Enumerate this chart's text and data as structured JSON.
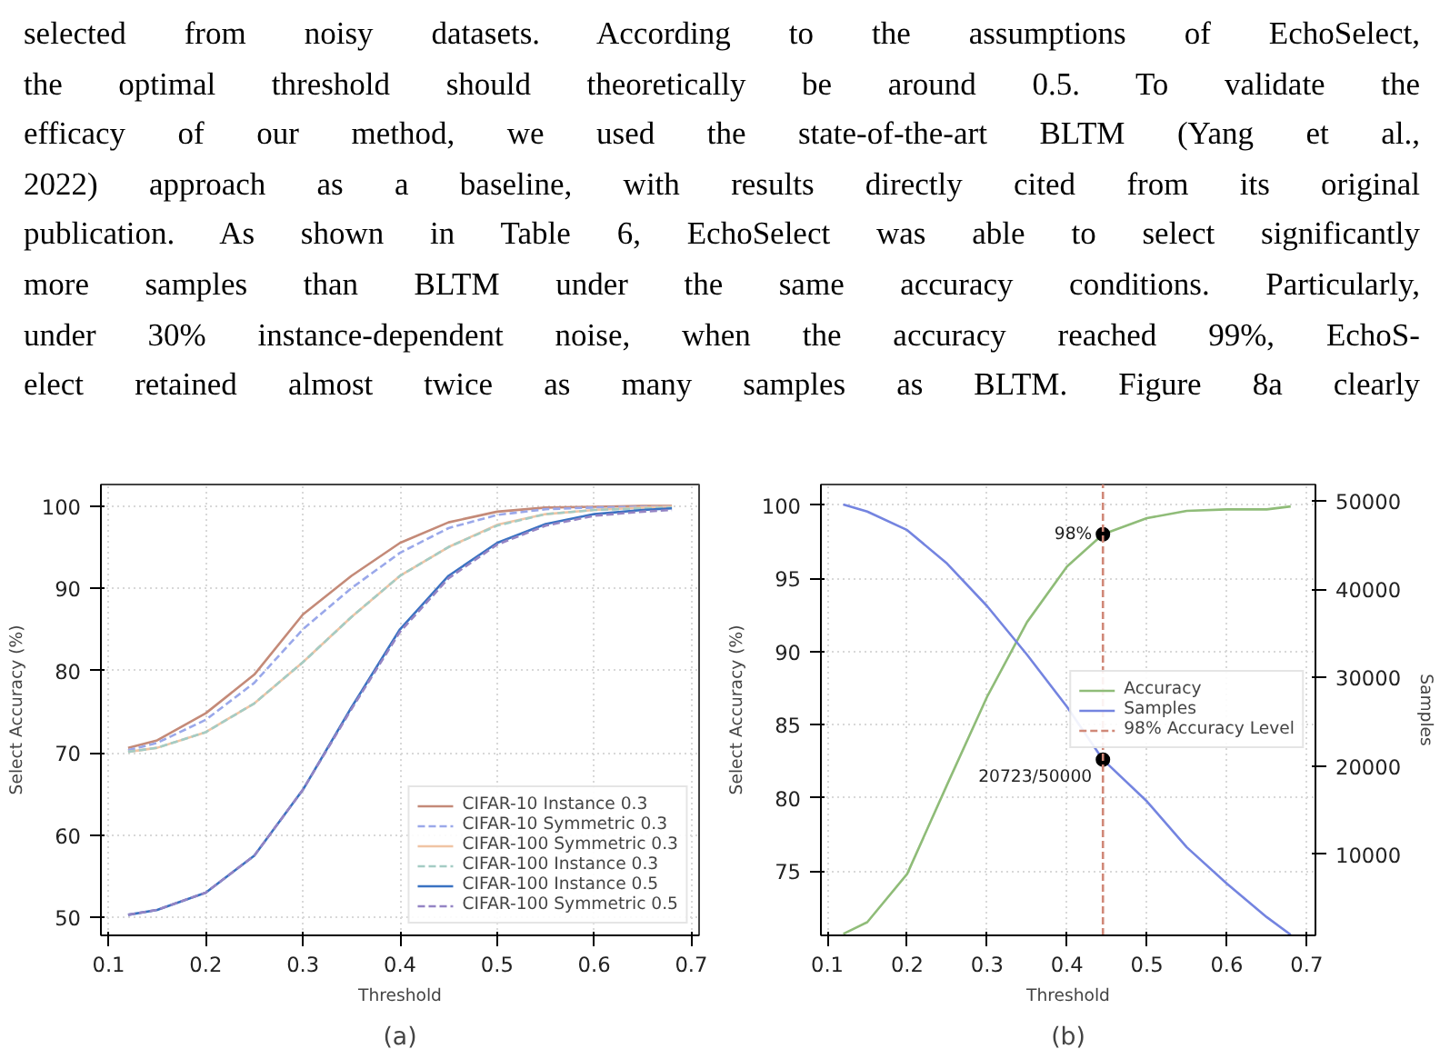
{
  "chart_data": [
    {
      "type": "other",
      "annotations": [
        "selected from noisy datasets. According to the assumptions of EchoSelect,",
        "the optimal threshold should theoretically be around 0.5. To validate the",
        "efficacy of our method, we used the state-of-the-art BLTM (Yang et al.,",
        "2022) approach as a baseline, with results directly cited from its original",
        "publication. As shown in Table 6, EchoSelect was able to select significantly",
        "more samples than BLTM under the same accuracy conditions. Particularly,",
        "under 30% instance-dependent noise, when the accuracy reached 99%, EchoS-",
        "elect retained almost twice as many samples as BLTM. Figure 8a clearly"
      ]
    },
    {
      "type": "line",
      "title": "(a)",
      "xlabel": "Threshold",
      "ylabel": "Select Accuracy (%)",
      "xlim": [
        0.092,
        0.708
      ],
      "ylim": [
        47.8,
        102.6
      ],
      "xticks": [
        0.1,
        0.2,
        0.3,
        0.4,
        0.5,
        0.6,
        0.7
      ],
      "yticks": [
        50,
        60,
        70,
        80,
        90,
        100
      ],
      "grid": true,
      "legend": "bottom right",
      "x": [
        0.12,
        0.15,
        0.2,
        0.25,
        0.3,
        0.35,
        0.4,
        0.45,
        0.5,
        0.55,
        0.6,
        0.65,
        0.68
      ],
      "series": [
        {
          "name": "CIFAR-10 Instance 0.3",
          "color": "#c48a78",
          "line_style": "solid",
          "values": [
            70.6,
            71.5,
            74.8,
            79.5,
            86.8,
            91.5,
            95.5,
            98,
            99.3,
            99.8,
            99.9,
            100,
            100
          ]
        },
        {
          "name": "CIFAR-10 Symmetric 0.3",
          "color": "#9aa8ea",
          "line_style": "dashed",
          "values": [
            70.3,
            71.2,
            74,
            78.5,
            85,
            90,
            94.3,
            97.3,
            98.9,
            99.6,
            99.8,
            99.9,
            99.9
          ]
        },
        {
          "name": "CIFAR-100 Symmetric 0.3",
          "color": "#f0c4a4",
          "line_style": "solid",
          "values": [
            70.1,
            70.6,
            72.5,
            76,
            81,
            86.5,
            91.5,
            95,
            97.7,
            99,
            99.5,
            99.8,
            99.9
          ]
        },
        {
          "name": "CIFAR-100 Instance 0.3",
          "color": "#a4ccc4",
          "line_style": "dashed",
          "values": [
            70.1,
            70.6,
            72.5,
            76,
            81,
            86.5,
            91.5,
            95,
            97.6,
            99,
            99.5,
            99.7,
            99.8
          ]
        },
        {
          "name": "CIFAR-100 Instance 0.5",
          "color": "#3a72c2",
          "line_style": "solid",
          "values": [
            50.3,
            50.9,
            53,
            57.5,
            65.5,
            75.5,
            85,
            91.5,
            95.5,
            97.8,
            99,
            99.5,
            99.7
          ]
        },
        {
          "name": "CIFAR-100 Symmetric 0.5",
          "color": "#9484c4",
          "line_style": "dashed",
          "values": [
            50.3,
            50.9,
            53,
            57.5,
            65.5,
            75.3,
            84.7,
            91.2,
            95.3,
            97.6,
            98.8,
            99.3,
            99.5
          ]
        }
      ]
    },
    {
      "type": "line",
      "title": "(b)",
      "xlabel": "Threshold",
      "ylabel": "Select Accuracy (%)",
      "y2label": "Samples",
      "xlim": [
        0.092,
        0.711
      ],
      "ylim": [
        70.6,
        101.4
      ],
      "y2lim": [
        830,
        51860
      ],
      "xticks": [
        0.1,
        0.2,
        0.3,
        0.4,
        0.5,
        0.6,
        0.7
      ],
      "yticks": [
        75,
        80,
        85,
        90,
        95,
        100
      ],
      "y2ticks": [
        10000,
        20000,
        30000,
        40000,
        50000
      ],
      "grid": true,
      "legend": "right",
      "x": [
        0.12,
        0.15,
        0.2,
        0.25,
        0.3,
        0.35,
        0.4,
        0.445,
        0.5,
        0.55,
        0.6,
        0.65,
        0.68
      ],
      "series": [
        {
          "name": "Accuracy",
          "color": "#8fbc78",
          "line_style": "solid",
          "values": [
            70.7,
            71.5,
            74.8,
            80.9,
            86.9,
            92,
            95.8,
            98,
            99.1,
            99.6,
            99.7,
            99.7,
            99.9
          ]
        },
        {
          "name": "Samples",
          "color": "#7484e0",
          "line_style": "solid",
          "axis": "y2",
          "values": [
            49600,
            48800,
            46700,
            42900,
            38100,
            32600,
            26700,
            20723,
            16000,
            10800,
            6700,
            2900,
            900
          ]
        },
        {
          "type": "scatter",
          "color": "#000000",
          "x": [
            0.445
          ],
          "values": [
            98
          ],
          "value_labels": [
            "98%"
          ]
        },
        {
          "type": "scatter",
          "color": "#000000",
          "axis": "y2",
          "x": [
            0.445
          ],
          "values": [
            20723
          ],
          "value_labels": [
            "20723/50000"
          ]
        }
      ],
      "ref_lines": [
        {
          "axis": "x",
          "value": 0.445,
          "label": "98% Accuracy Level",
          "color": "#d08878",
          "line_style": "dashed"
        }
      ]
    }
  ]
}
